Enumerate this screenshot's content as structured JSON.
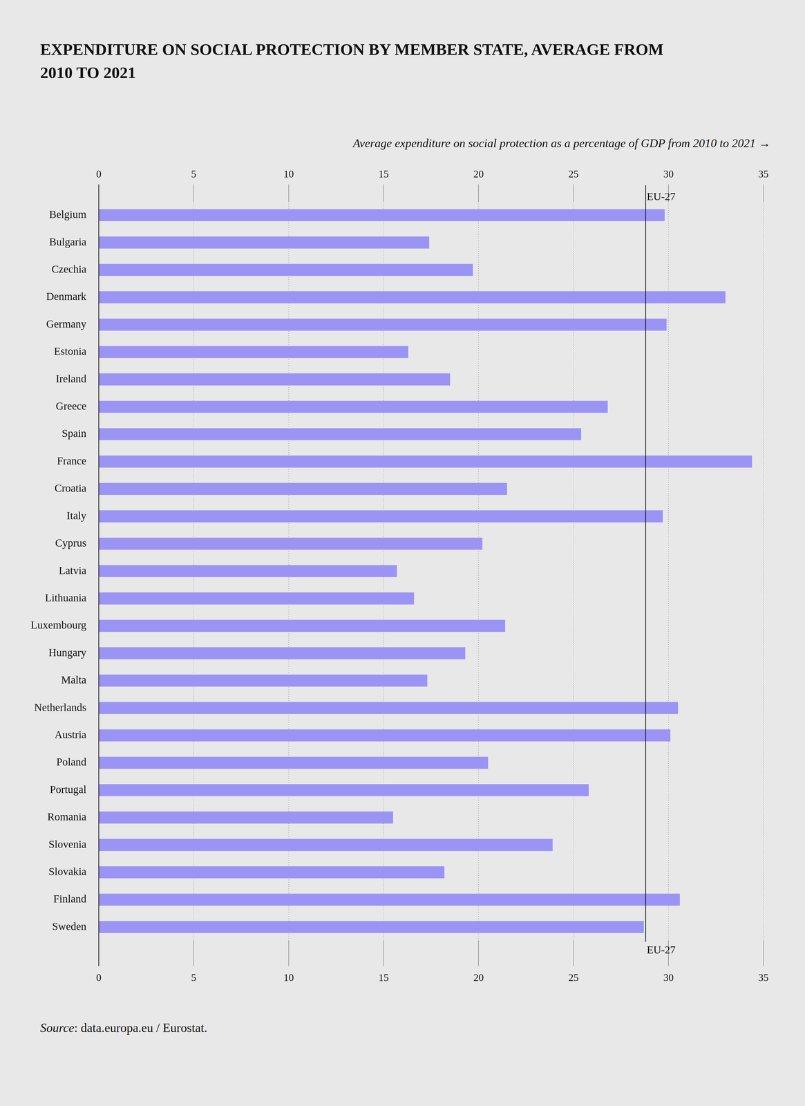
{
  "chart_data": {
    "type": "bar",
    "title": "EXPENDITURE ON SOCIAL PROTECTION BY MEMBER STATE, AVERAGE FROM 2010 TO 2021",
    "x_label": "Average expenditure on social protection as a percentage of GDP from 2010 to 2021 →",
    "source": "Source: data.europa.eu / Eurostat.",
    "categories": [
      "Belgium",
      "Bulgaria",
      "Czechia",
      "Denmark",
      "Germany",
      "Estonia",
      "Ireland",
      "Greece",
      "Spain",
      "France",
      "Croatia",
      "Italy",
      "Cyprus",
      "Latvia",
      "Lithuania",
      "Luxembourg",
      "Hungary",
      "Malta",
      "Netherlands",
      "Austria",
      "Poland",
      "Portugal",
      "Romania",
      "Slovenia",
      "Slovakia",
      "Finland",
      "Sweden"
    ],
    "values": [
      29.8,
      17.4,
      19.7,
      33.0,
      29.9,
      16.3,
      18.5,
      26.8,
      25.4,
      34.4,
      21.5,
      29.7,
      20.2,
      15.7,
      16.6,
      21.4,
      19.3,
      17.3,
      30.5,
      30.1,
      20.5,
      25.8,
      15.5,
      23.9,
      18.2,
      30.6,
      28.7
    ],
    "color": "#9c94f5",
    "orientation": "horizontal",
    "xlim": [
      0,
      35
    ],
    "xticks": [
      0,
      5,
      10,
      15,
      20,
      25,
      30,
      35
    ],
    "grid": true,
    "annotations": [
      {
        "text": "EU-27",
        "value": 28.8
      }
    ]
  }
}
